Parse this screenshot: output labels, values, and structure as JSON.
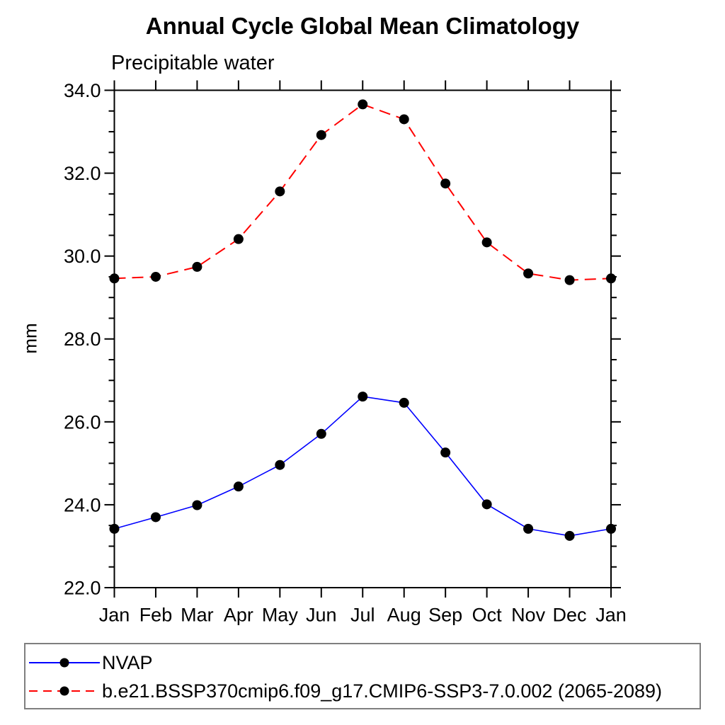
{
  "figure": {
    "title": "Annual Cycle Global Mean Climatology",
    "subtitle": "Precipitable water",
    "ylabel": "mm"
  },
  "chart_data": {
    "type": "line",
    "title": "Annual Cycle Global Mean Climatology",
    "subtitle": "Precipitable water",
    "xlabel": "",
    "ylabel": "mm",
    "categories": [
      "Jan",
      "Feb",
      "Mar",
      "Apr",
      "May",
      "Jun",
      "Jul",
      "Aug",
      "Sep",
      "Oct",
      "Nov",
      "Dec",
      "Jan"
    ],
    "ylim": [
      22.0,
      34.0
    ],
    "ytick_major": 2.0,
    "ytick_minor": 0.5,
    "ytick_labels": [
      "22.0",
      "24.0",
      "26.0",
      "28.0",
      "30.0",
      "32.0",
      "34.0"
    ],
    "grid": false,
    "legend_position": "bottom",
    "axis_color": "#000000",
    "legend_border_color": "#7f7f7f",
    "marker_shape": "filled-circle",
    "series": [
      {
        "name": "NVAP",
        "color": "#0000ff",
        "dash": "solid",
        "marker_color": "#000000",
        "values": [
          23.42,
          23.7,
          23.99,
          24.44,
          24.96,
          25.71,
          26.61,
          26.46,
          25.26,
          24.01,
          23.42,
          23.25,
          23.42
        ]
      },
      {
        "name": "b.e21.BSSP370cmip6.f09_g17.CMIP6-SSP3-7.0.002 (2065-2089)",
        "color": "#ff0000",
        "dash": "dashed",
        "marker_color": "#000000",
        "values": [
          29.46,
          29.5,
          29.74,
          30.41,
          31.56,
          32.92,
          33.66,
          33.3,
          31.75,
          30.33,
          29.58,
          29.42,
          29.46
        ]
      }
    ]
  }
}
